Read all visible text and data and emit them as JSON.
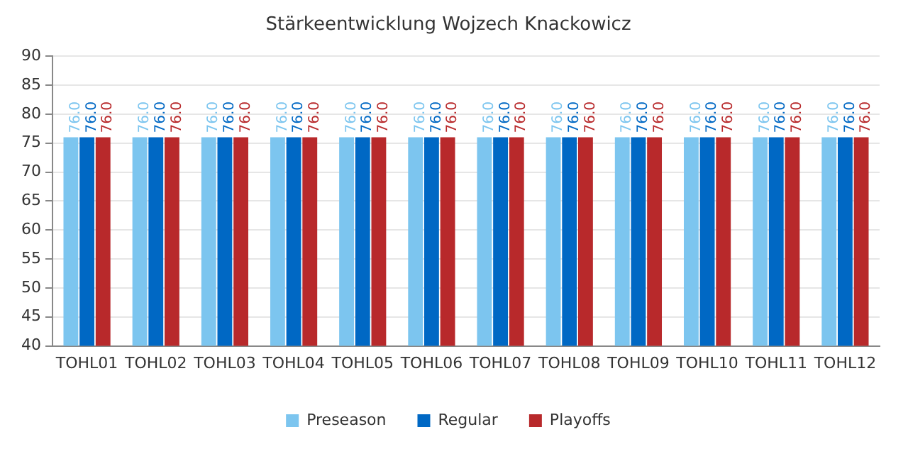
{
  "chart_data": {
    "type": "bar",
    "title": "Stärkeentwicklung Wojzech Knackowicz",
    "categories": [
      "TOHL01",
      "TOHL02",
      "TOHL03",
      "TOHL04",
      "TOHL05",
      "TOHL06",
      "TOHL07",
      "TOHL08",
      "TOHL09",
      "TOHL10",
      "TOHL11",
      "TOHL12"
    ],
    "series": [
      {
        "name": "Preseason",
        "color": "#7cc5ef",
        "values": [
          76,
          76,
          76,
          76,
          76,
          76,
          76,
          76,
          76,
          76,
          76,
          76
        ],
        "value_labels": [
          "76.0",
          "76.0",
          "76.0",
          "76.0",
          "76.0",
          "76.0",
          "76.0",
          "76.0",
          "76.0",
          "76.0",
          "76.0",
          "76.0"
        ]
      },
      {
        "name": "Regular",
        "color": "#0068c4",
        "values": [
          76,
          76,
          76,
          76,
          76,
          76,
          76,
          76,
          76,
          76,
          76,
          76
        ],
        "value_labels": [
          "76.0",
          "76.0",
          "76.0",
          "76.0",
          "76.0",
          "76.0",
          "76.0",
          "76.0",
          "76.0",
          "76.0",
          "76.0",
          "76.0"
        ]
      },
      {
        "name": "Playoffs",
        "color": "#b8292b",
        "values": [
          76,
          76,
          76,
          76,
          76,
          76,
          76,
          76,
          76,
          76,
          76,
          76
        ],
        "value_labels": [
          "76.0",
          "76.0",
          "76.0",
          "76.0",
          "76.0",
          "76.0",
          "76.0",
          "76.0",
          "76.0",
          "76.0",
          "76.0",
          "76.0"
        ]
      }
    ],
    "ylim": [
      40,
      90
    ],
    "yticks": [
      40,
      45,
      50,
      55,
      60,
      65,
      70,
      75,
      80,
      85,
      90
    ],
    "grid": "y",
    "legend": "bottom"
  }
}
